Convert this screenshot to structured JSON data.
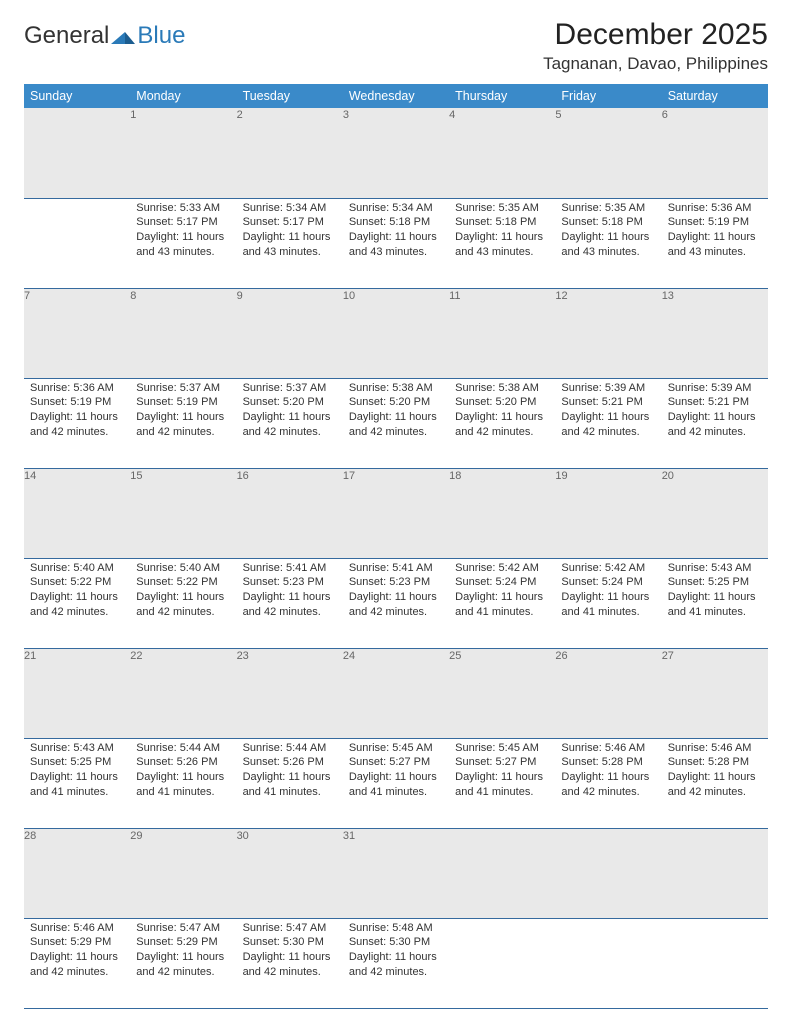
{
  "logo": {
    "part1": "General",
    "part2": "Blue"
  },
  "header": {
    "month_title": "December 2025",
    "location": "Tagnanan, Davao, Philippines"
  },
  "colors": {
    "header_bg": "#3a8ac9",
    "daynum_bg": "#e9e9e9",
    "row_border": "#356a9e"
  },
  "weekdays": [
    "Sunday",
    "Monday",
    "Tuesday",
    "Wednesday",
    "Thursday",
    "Friday",
    "Saturday"
  ],
  "weeks": [
    [
      null,
      {
        "n": "1",
        "sr": "5:33 AM",
        "ss": "5:17 PM",
        "dl": "11 hours and 43 minutes."
      },
      {
        "n": "2",
        "sr": "5:34 AM",
        "ss": "5:17 PM",
        "dl": "11 hours and 43 minutes."
      },
      {
        "n": "3",
        "sr": "5:34 AM",
        "ss": "5:18 PM",
        "dl": "11 hours and 43 minutes."
      },
      {
        "n": "4",
        "sr": "5:35 AM",
        "ss": "5:18 PM",
        "dl": "11 hours and 43 minutes."
      },
      {
        "n": "5",
        "sr": "5:35 AM",
        "ss": "5:18 PM",
        "dl": "11 hours and 43 minutes."
      },
      {
        "n": "6",
        "sr": "5:36 AM",
        "ss": "5:19 PM",
        "dl": "11 hours and 43 minutes."
      }
    ],
    [
      {
        "n": "7",
        "sr": "5:36 AM",
        "ss": "5:19 PM",
        "dl": "11 hours and 42 minutes."
      },
      {
        "n": "8",
        "sr": "5:37 AM",
        "ss": "5:19 PM",
        "dl": "11 hours and 42 minutes."
      },
      {
        "n": "9",
        "sr": "5:37 AM",
        "ss": "5:20 PM",
        "dl": "11 hours and 42 minutes."
      },
      {
        "n": "10",
        "sr": "5:38 AM",
        "ss": "5:20 PM",
        "dl": "11 hours and 42 minutes."
      },
      {
        "n": "11",
        "sr": "5:38 AM",
        "ss": "5:20 PM",
        "dl": "11 hours and 42 minutes."
      },
      {
        "n": "12",
        "sr": "5:39 AM",
        "ss": "5:21 PM",
        "dl": "11 hours and 42 minutes."
      },
      {
        "n": "13",
        "sr": "5:39 AM",
        "ss": "5:21 PM",
        "dl": "11 hours and 42 minutes."
      }
    ],
    [
      {
        "n": "14",
        "sr": "5:40 AM",
        "ss": "5:22 PM",
        "dl": "11 hours and 42 minutes."
      },
      {
        "n": "15",
        "sr": "5:40 AM",
        "ss": "5:22 PM",
        "dl": "11 hours and 42 minutes."
      },
      {
        "n": "16",
        "sr": "5:41 AM",
        "ss": "5:23 PM",
        "dl": "11 hours and 42 minutes."
      },
      {
        "n": "17",
        "sr": "5:41 AM",
        "ss": "5:23 PM",
        "dl": "11 hours and 42 minutes."
      },
      {
        "n": "18",
        "sr": "5:42 AM",
        "ss": "5:24 PM",
        "dl": "11 hours and 41 minutes."
      },
      {
        "n": "19",
        "sr": "5:42 AM",
        "ss": "5:24 PM",
        "dl": "11 hours and 41 minutes."
      },
      {
        "n": "20",
        "sr": "5:43 AM",
        "ss": "5:25 PM",
        "dl": "11 hours and 41 minutes."
      }
    ],
    [
      {
        "n": "21",
        "sr": "5:43 AM",
        "ss": "5:25 PM",
        "dl": "11 hours and 41 minutes."
      },
      {
        "n": "22",
        "sr": "5:44 AM",
        "ss": "5:26 PM",
        "dl": "11 hours and 41 minutes."
      },
      {
        "n": "23",
        "sr": "5:44 AM",
        "ss": "5:26 PM",
        "dl": "11 hours and 41 minutes."
      },
      {
        "n": "24",
        "sr": "5:45 AM",
        "ss": "5:27 PM",
        "dl": "11 hours and 41 minutes."
      },
      {
        "n": "25",
        "sr": "5:45 AM",
        "ss": "5:27 PM",
        "dl": "11 hours and 41 minutes."
      },
      {
        "n": "26",
        "sr": "5:46 AM",
        "ss": "5:28 PM",
        "dl": "11 hours and 42 minutes."
      },
      {
        "n": "27",
        "sr": "5:46 AM",
        "ss": "5:28 PM",
        "dl": "11 hours and 42 minutes."
      }
    ],
    [
      {
        "n": "28",
        "sr": "5:46 AM",
        "ss": "5:29 PM",
        "dl": "11 hours and 42 minutes."
      },
      {
        "n": "29",
        "sr": "5:47 AM",
        "ss": "5:29 PM",
        "dl": "11 hours and 42 minutes."
      },
      {
        "n": "30",
        "sr": "5:47 AM",
        "ss": "5:30 PM",
        "dl": "11 hours and 42 minutes."
      },
      {
        "n": "31",
        "sr": "5:48 AM",
        "ss": "5:30 PM",
        "dl": "11 hours and 42 minutes."
      },
      null,
      null,
      null
    ]
  ],
  "labels": {
    "sunrise": "Sunrise:",
    "sunset": "Sunset:",
    "daylight": "Daylight:"
  }
}
